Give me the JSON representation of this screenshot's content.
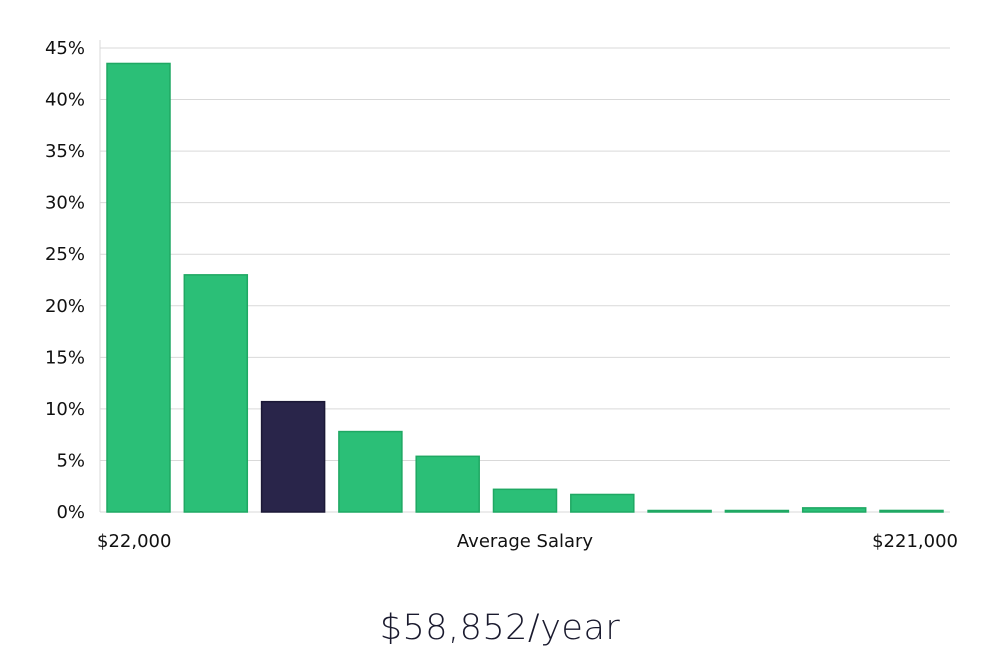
{
  "chart_data": {
    "type": "bar",
    "values": [
      43.5,
      23.0,
      10.7,
      7.8,
      5.4,
      2.2,
      1.7,
      0.05,
      0.1,
      0.4,
      0.15
    ],
    "highlight_index": 2,
    "ylim": [
      0,
      45
    ],
    "yticks": [
      0,
      5,
      10,
      15,
      20,
      25,
      30,
      35,
      40,
      45
    ],
    "ytick_suffix": "%",
    "grid": true,
    "x_min_label": "$22,000",
    "x_max_label": "$221,000",
    "xlabel": "Average Salary",
    "colors": {
      "bar": "#2bbf77",
      "bar_border": "#1fa863",
      "highlight": "#29254a",
      "grid": "#d9d9d9"
    }
  },
  "summary": {
    "text": "$58,852/year"
  }
}
